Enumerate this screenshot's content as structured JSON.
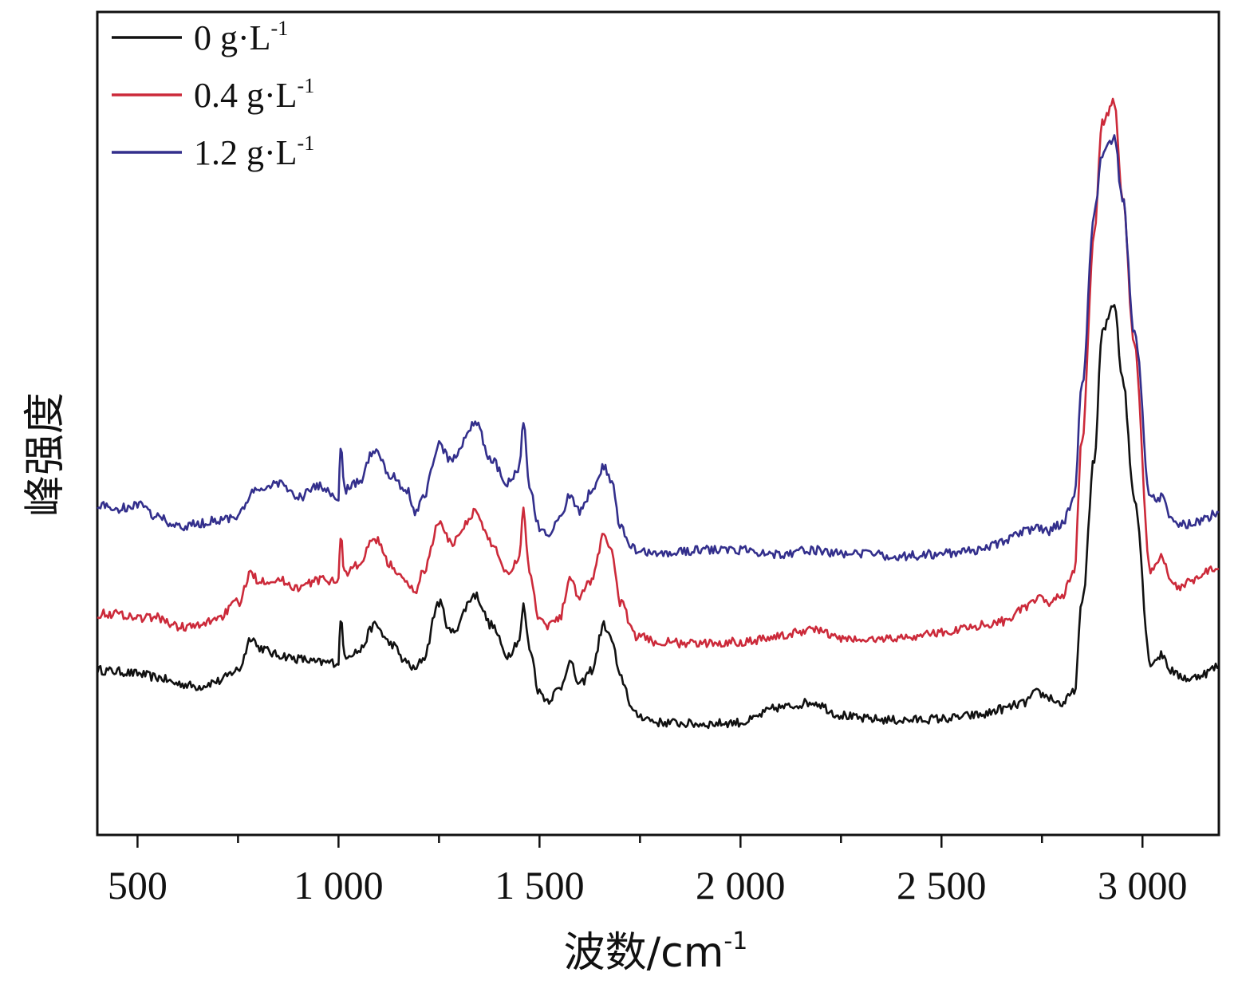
{
  "chart_data": {
    "type": "line",
    "xlabel": "波数/cm",
    "xlabel_sup": "-1",
    "ylabel": "峰强度",
    "xlim": [
      400,
      3190
    ],
    "ylim": [
      0,
      1
    ],
    "x_ticks": [
      500,
      1000,
      1500,
      2000,
      2500,
      3000
    ],
    "x_tick_labels": [
      "500",
      "1 000",
      "1 500",
      "2 000",
      "2 500",
      "3 000"
    ],
    "grid": false,
    "legend_position": "top-left",
    "series": [
      {
        "name": "0 g·L",
        "name_sup": "-1",
        "color": "#111111",
        "x": [
          400,
          450,
          500,
          550,
          600,
          650,
          700,
          750,
          785,
          800,
          850,
          900,
          950,
          1000,
          1005,
          1015,
          1050,
          1090,
          1130,
          1170,
          1190,
          1210,
          1250,
          1280,
          1340,
          1380,
          1420,
          1450,
          1460,
          1475,
          1500,
          1520,
          1550,
          1575,
          1600,
          1630,
          1660,
          1680,
          1700,
          1740,
          1800,
          1900,
          2000,
          2100,
          2180,
          2250,
          2300,
          2400,
          2500,
          2600,
          2650,
          2700,
          2740,
          2760,
          2800,
          2830,
          2850,
          2880,
          2900,
          2930,
          2950,
          2980,
          3020,
          3050,
          3070,
          3090,
          3120,
          3150,
          3190
        ],
        "values": [
          0.17,
          0.168,
          0.165,
          0.16,
          0.152,
          0.148,
          0.155,
          0.17,
          0.215,
          0.2,
          0.19,
          0.185,
          0.18,
          0.18,
          0.24,
          0.19,
          0.195,
          0.23,
          0.205,
          0.18,
          0.17,
          0.185,
          0.26,
          0.22,
          0.27,
          0.23,
          0.19,
          0.21,
          0.255,
          0.2,
          0.14,
          0.13,
          0.145,
          0.18,
          0.15,
          0.17,
          0.23,
          0.21,
          0.16,
          0.11,
          0.1,
          0.098,
          0.1,
          0.12,
          0.127,
          0.11,
          0.105,
          0.103,
          0.105,
          0.11,
          0.118,
          0.125,
          0.14,
          0.135,
          0.125,
          0.14,
          0.26,
          0.45,
          0.62,
          0.66,
          0.56,
          0.4,
          0.18,
          0.19,
          0.17,
          0.162,
          0.158,
          0.165,
          0.175
        ]
      },
      {
        "name": "0.4 g·L",
        "name_sup": "-1",
        "color": "#cc2a3a",
        "x": [
          400,
          450,
          500,
          550,
          600,
          650,
          700,
          750,
          785,
          800,
          850,
          900,
          950,
          1000,
          1005,
          1015,
          1050,
          1090,
          1130,
          1170,
          1190,
          1210,
          1250,
          1280,
          1340,
          1380,
          1420,
          1450,
          1460,
          1475,
          1500,
          1520,
          1550,
          1575,
          1600,
          1630,
          1660,
          1680,
          1700,
          1740,
          1800,
          1900,
          2000,
          2100,
          2180,
          2250,
          2300,
          2400,
          2500,
          2600,
          2650,
          2700,
          2740,
          2760,
          2800,
          2830,
          2850,
          2880,
          2900,
          2930,
          2950,
          2980,
          3020,
          3050,
          3070,
          3090,
          3120,
          3150,
          3190
        ],
        "values": [
          0.245,
          0.245,
          0.24,
          0.24,
          0.228,
          0.228,
          0.24,
          0.26,
          0.3,
          0.29,
          0.29,
          0.28,
          0.29,
          0.29,
          0.35,
          0.3,
          0.31,
          0.345,
          0.31,
          0.285,
          0.275,
          0.3,
          0.365,
          0.34,
          0.38,
          0.34,
          0.3,
          0.32,
          0.385,
          0.3,
          0.24,
          0.23,
          0.24,
          0.29,
          0.27,
          0.29,
          0.35,
          0.33,
          0.26,
          0.215,
          0.207,
          0.205,
          0.208,
          0.215,
          0.225,
          0.212,
          0.21,
          0.213,
          0.22,
          0.23,
          0.235,
          0.25,
          0.265,
          0.26,
          0.27,
          0.3,
          0.48,
          0.75,
          0.9,
          0.93,
          0.8,
          0.6,
          0.3,
          0.32,
          0.29,
          0.28,
          0.29,
          0.3,
          0.305
        ]
      },
      {
        "name": "1.2 g·L",
        "name_sup": "-1",
        "color": "#332f8c",
        "x": [
          400,
          450,
          500,
          550,
          600,
          650,
          700,
          750,
          785,
          800,
          850,
          900,
          950,
          1000,
          1005,
          1015,
          1050,
          1090,
          1130,
          1170,
          1190,
          1210,
          1250,
          1280,
          1340,
          1380,
          1420,
          1450,
          1460,
          1475,
          1500,
          1520,
          1550,
          1575,
          1600,
          1630,
          1660,
          1680,
          1700,
          1740,
          1800,
          1900,
          2000,
          2100,
          2180,
          2250,
          2300,
          2400,
          2500,
          2600,
          2650,
          2700,
          2740,
          2760,
          2800,
          2830,
          2850,
          2880,
          2900,
          2930,
          2950,
          2980,
          3020,
          3050,
          3070,
          3090,
          3120,
          3150,
          3190
        ],
        "values": [
          0.39,
          0.385,
          0.39,
          0.375,
          0.36,
          0.365,
          0.37,
          0.375,
          0.405,
          0.41,
          0.42,
          0.4,
          0.415,
          0.4,
          0.47,
          0.41,
          0.42,
          0.465,
          0.43,
          0.41,
          0.38,
          0.4,
          0.47,
          0.45,
          0.5,
          0.45,
          0.42,
          0.44,
          0.5,
          0.41,
          0.36,
          0.35,
          0.37,
          0.405,
          0.38,
          0.41,
          0.44,
          0.42,
          0.36,
          0.33,
          0.325,
          0.33,
          0.33,
          0.325,
          0.33,
          0.325,
          0.325,
          0.322,
          0.325,
          0.33,
          0.34,
          0.355,
          0.36,
          0.355,
          0.365,
          0.4,
          0.55,
          0.78,
          0.86,
          0.88,
          0.8,
          0.62,
          0.4,
          0.4,
          0.37,
          0.365,
          0.365,
          0.37,
          0.38
        ]
      }
    ]
  }
}
